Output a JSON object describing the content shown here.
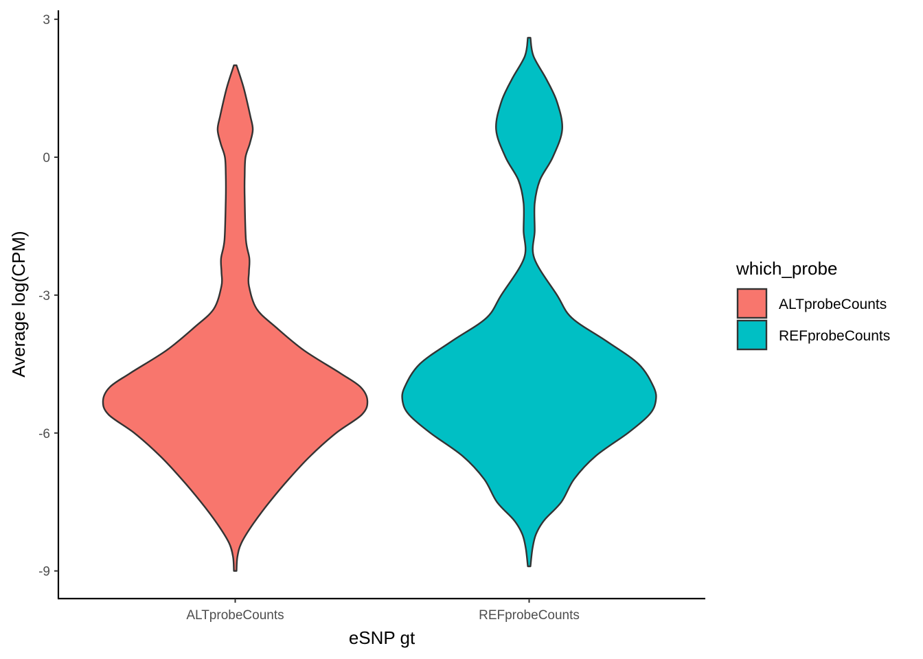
{
  "chart_data": {
    "type": "violin",
    "xlabel": "eSNP gt",
    "ylabel": "Average log(CPM)",
    "ylim": [
      -9.6,
      3.2
    ],
    "y_ticks": [
      3,
      0,
      -3,
      -6,
      -9
    ],
    "categories": [
      "ALTprobeCounts",
      "REFprobeCounts"
    ],
    "legend": {
      "title": "which_probe",
      "position": "right",
      "entries": [
        "ALTprobeCounts",
        "REFprobeCounts"
      ]
    },
    "colors": {
      "ALTprobeCounts": "#F8766D",
      "REFprobeCounts": "#00BFC4",
      "outline": "#333333"
    },
    "violins": [
      {
        "category": "ALTprobeCounts",
        "max": 2.0,
        "min": -9.0,
        "median_mode": -5.3,
        "profile_y": [
          2.0,
          1.5,
          0.9,
          0.6,
          0.3,
          0.0,
          -0.4,
          -0.9,
          -1.8,
          -2.2,
          -2.5,
          -2.8,
          -3.3,
          -3.7,
          -4.2,
          -4.7,
          -5.0,
          -5.3,
          -5.6,
          -6.0,
          -6.5,
          -7.0,
          -7.5,
          -8.0,
          -8.4,
          -8.7,
          -9.0
        ],
        "profile_width": [
          0.03,
          0.2,
          0.35,
          0.41,
          0.34,
          0.24,
          0.22,
          0.22,
          0.25,
          0.33,
          0.32,
          0.32,
          0.5,
          0.95,
          1.6,
          2.45,
          2.92,
          3.08,
          2.95,
          2.35,
          1.75,
          1.25,
          0.8,
          0.4,
          0.14,
          0.05,
          0.03
        ]
      },
      {
        "category": "REFprobeCounts",
        "max": 2.6,
        "min": -8.9,
        "median_mode": -5.3,
        "profile_y": [
          2.6,
          2.2,
          1.7,
          1.2,
          0.6,
          0.0,
          -0.5,
          -1.0,
          -1.6,
          -2.2,
          -3.0,
          -3.5,
          -4.0,
          -4.5,
          -5.0,
          -5.3,
          -5.6,
          -6.0,
          -6.5,
          -7.0,
          -7.5,
          -7.9,
          -8.2,
          -8.5,
          -8.9
        ],
        "profile_width": [
          0.03,
          0.1,
          0.4,
          0.65,
          0.77,
          0.55,
          0.25,
          0.13,
          0.13,
          0.12,
          0.65,
          1.0,
          1.8,
          2.55,
          2.9,
          2.95,
          2.8,
          2.3,
          1.55,
          1.05,
          0.75,
          0.35,
          0.16,
          0.08,
          0.03
        ]
      }
    ]
  }
}
